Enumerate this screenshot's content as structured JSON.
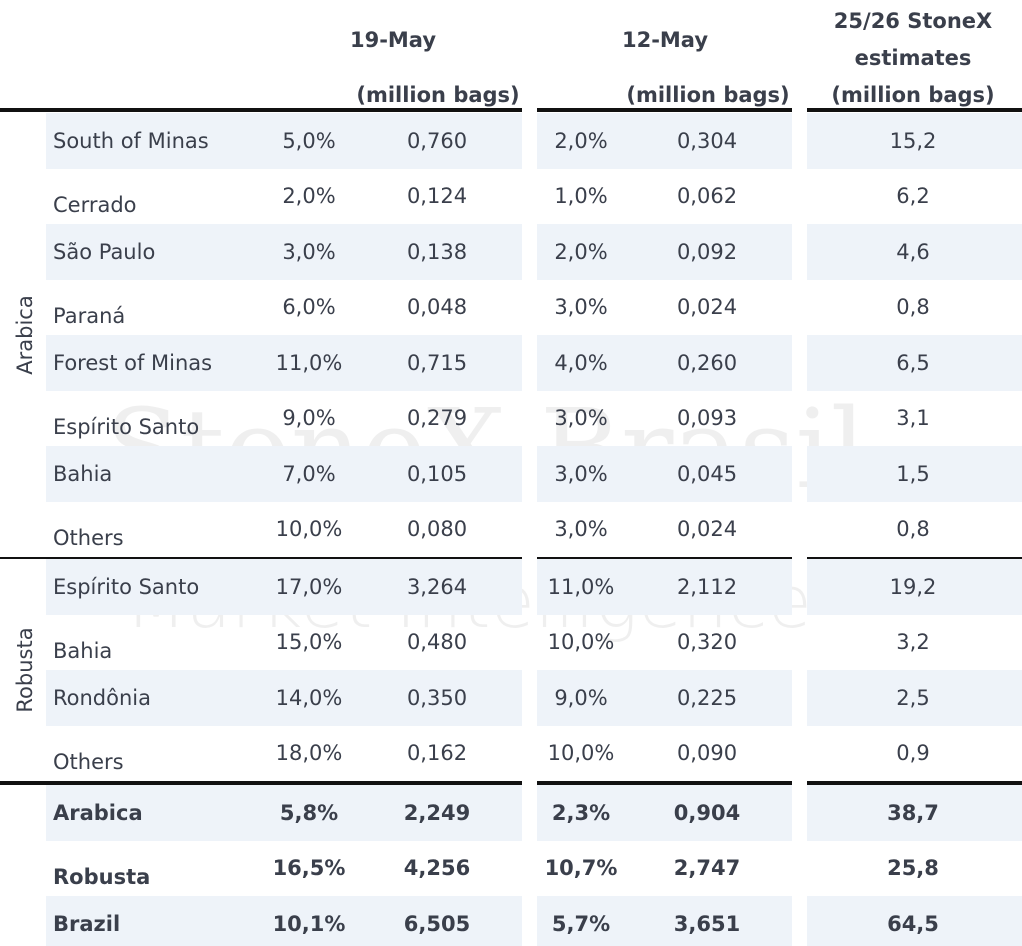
{
  "header": {
    "col1": "19-May",
    "col1_unit": "(million bags)",
    "col2": "12-May",
    "col2_unit": "(million bags)",
    "col3": [
      "25/26 StoneX",
      "estimates",
      "(million bags)"
    ]
  },
  "watermark": [
    "StoneX Brasil",
    "Market Intelligence"
  ],
  "groups": [
    {
      "label": "Arabica",
      "rows": [
        [
          "South of Minas",
          "5,0%",
          "0,760",
          "2,0%",
          "0,304",
          "15,2"
        ],
        [
          "Cerrado",
          "2,0%",
          "0,124",
          "1,0%",
          "0,062",
          "6,2"
        ],
        [
          "São Paulo",
          "3,0%",
          "0,138",
          "2,0%",
          "0,092",
          "4,6"
        ],
        [
          "Paraná",
          "6,0%",
          "0,048",
          "3,0%",
          "0,024",
          "0,8"
        ],
        [
          "Forest of Minas",
          "11,0%",
          "0,715",
          "4,0%",
          "0,260",
          "6,5"
        ],
        [
          "Espírito Santo",
          "9,0%",
          "0,279",
          "3,0%",
          "0,093",
          "3,1"
        ],
        [
          "Bahia",
          "7,0%",
          "0,105",
          "3,0%",
          "0,045",
          "1,5"
        ],
        [
          "Others",
          "10,0%",
          "0,080",
          "3,0%",
          "0,024",
          "0,8"
        ]
      ]
    },
    {
      "label": "Robusta",
      "rows": [
        [
          "Espírito Santo",
          "17,0%",
          "3,264",
          "11,0%",
          "2,112",
          "19,2"
        ],
        [
          "Bahia",
          "15,0%",
          "0,480",
          "10,0%",
          "0,320",
          "3,2"
        ],
        [
          "Rondônia",
          "14,0%",
          "0,350",
          "9,0%",
          "0,225",
          "2,5"
        ],
        [
          "Others",
          "18,0%",
          "0,162",
          "10,0%",
          "0,090",
          "0,9"
        ]
      ]
    }
  ],
  "totals": [
    [
      "Arabica",
      "5,8%",
      "2,249",
      "2,3%",
      "0,904",
      "38,7"
    ],
    [
      "Robusta",
      "16,5%",
      "4,256",
      "10,7%",
      "2,747",
      "25,8"
    ],
    [
      "Brazil",
      "10,1%",
      "6,505",
      "5,7%",
      "3,651",
      "64,5"
    ]
  ]
}
